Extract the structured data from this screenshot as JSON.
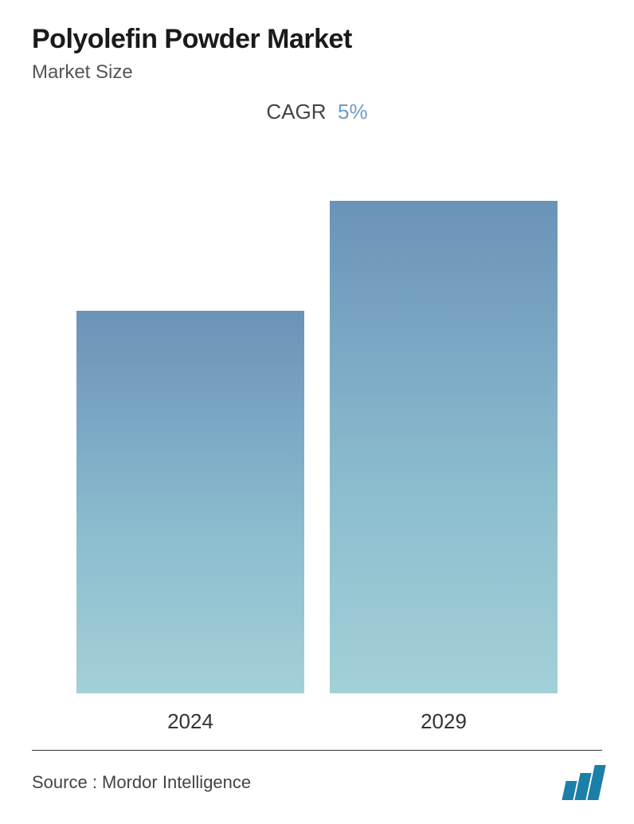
{
  "header": {
    "title": "Polyolefin Powder Market",
    "subtitle": "Market Size"
  },
  "cagr": {
    "label": "CAGR",
    "value": "5%",
    "value_color": "#6b9dc6"
  },
  "chart": {
    "type": "bar",
    "categories": [
      "2024",
      "2029"
    ],
    "values": [
      480,
      618
    ],
    "max_value": 650,
    "bar_gradient_top": "#6b93b8",
    "bar_gradient_upper": "#7ba8c4",
    "bar_gradient_lower": "#8dbecf",
    "bar_gradient_bottom": "#a3d0d8",
    "background_color": "#ffffff",
    "label_fontsize": 26,
    "label_color": "#333333"
  },
  "footer": {
    "source_text": "Source :  Mordor Intelligence",
    "divider_color": "#333333",
    "logo_color": "#1b7fa8"
  }
}
